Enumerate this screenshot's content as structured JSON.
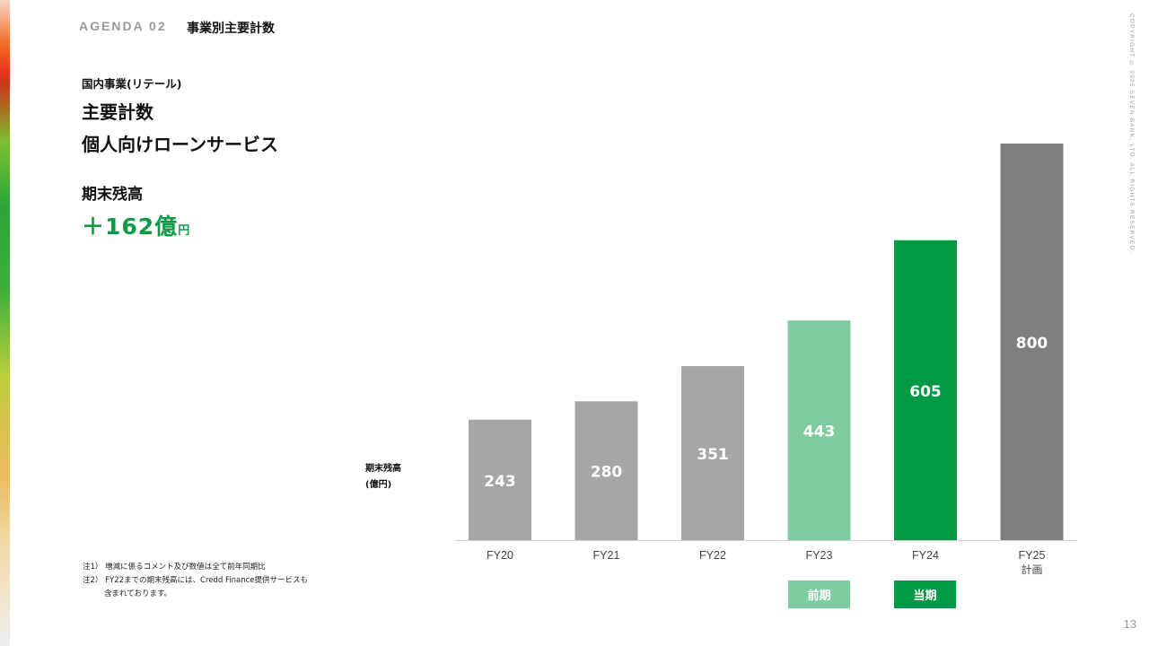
{
  "header": {
    "agenda": "AGENDA 02",
    "title": "事業別主要計数"
  },
  "copyright": "COPYRIGHT © 2025  SEVEN BANK, LTD. ALL RIGHTS RESERVED.",
  "page_number": "13",
  "segment": "国内事業(リテール)",
  "title_line1": "主要計数",
  "title_line2": "個人向けローンサービス",
  "metric": {
    "label": "期末残高",
    "value": "＋162億",
    "unit": "円"
  },
  "axis_unit": {
    "line1": "期末残高",
    "line2": "(億円)"
  },
  "notes": {
    "note1": "注1） 増減に係るコメント及び数値は全て前年同期比",
    "note2": "注2） FY22までの期末残高には、Credd Finance提供サービスも",
    "note2_cont": "含まれております。"
  },
  "badges": {
    "previous": "前期",
    "current": "当期"
  },
  "colors": {
    "past": "#a6a6a6",
    "previous": "#80cca1",
    "current": "#009a44",
    "plan": "#7f7f7f",
    "accent_text": "#0d9a44"
  },
  "chart_data": {
    "type": "bar",
    "categories": [
      "FY20",
      "FY21",
      "FY22",
      "FY23",
      "FY24",
      "FY25"
    ],
    "category_sublabels": [
      "",
      "",
      "",
      "",
      "",
      "計画"
    ],
    "values": [
      243,
      280,
      351,
      443,
      605,
      800
    ],
    "bar_roles": [
      "past",
      "past",
      "past",
      "previous",
      "current",
      "plan"
    ],
    "ylabel": "期末残高 (億円)",
    "ylim": [
      0,
      800
    ],
    "grid": false,
    "data_labels": true
  }
}
